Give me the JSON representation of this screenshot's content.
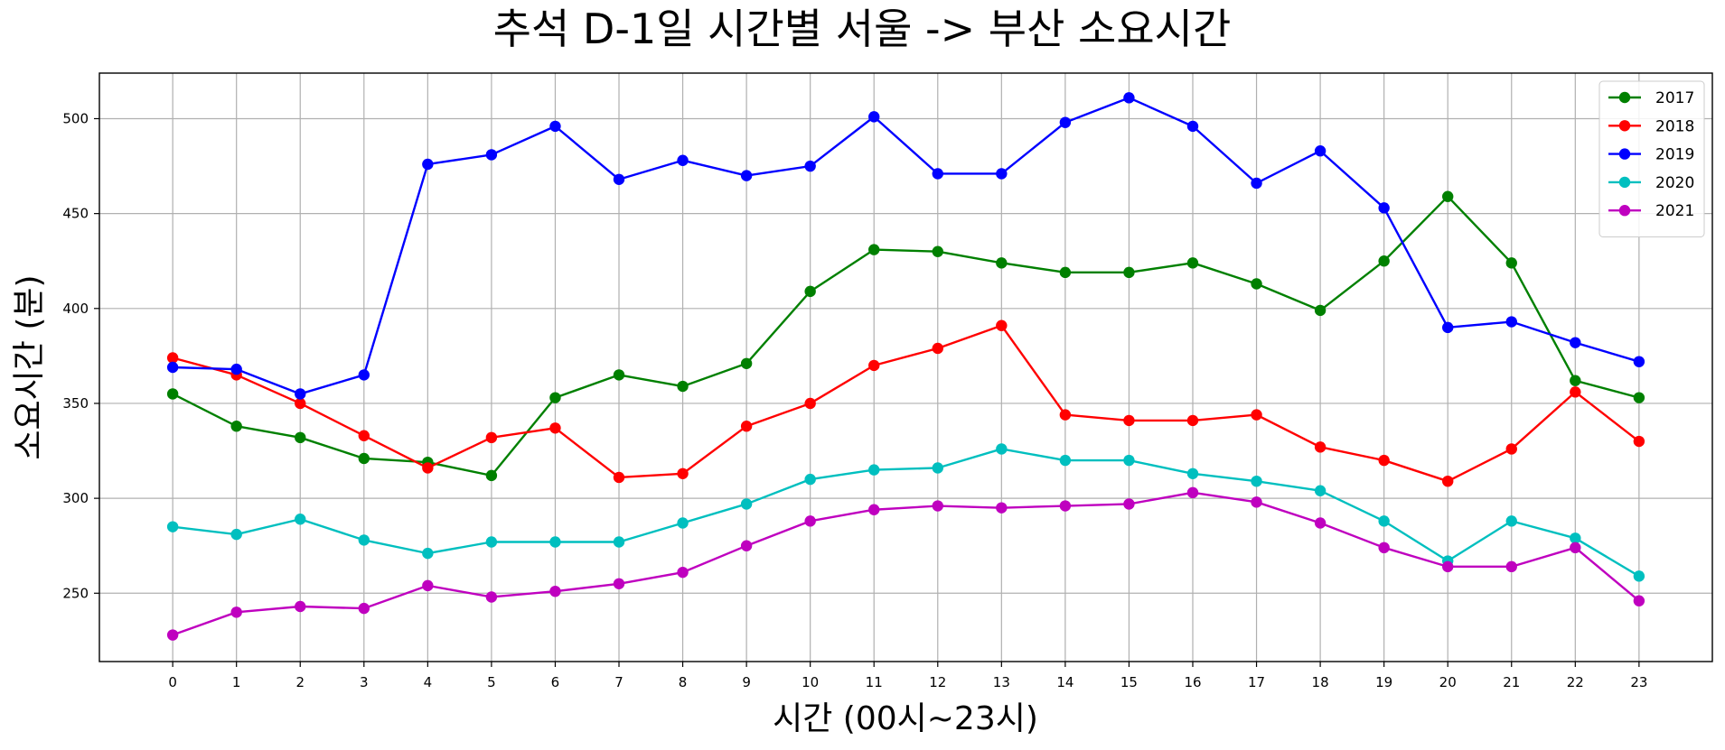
{
  "chart_data": {
    "type": "line",
    "title": "추석 D-1일 시간별 서울 -> 부산 소요시간",
    "xlabel": "시간 (00시~23시)",
    "ylabel": "소요시간 (분)",
    "x": [
      0,
      1,
      2,
      3,
      4,
      5,
      6,
      7,
      8,
      9,
      10,
      11,
      12,
      13,
      14,
      15,
      16,
      17,
      18,
      19,
      20,
      21,
      22,
      23
    ],
    "xlim": [
      -1.15,
      24.15
    ],
    "ylim": [
      214,
      524
    ],
    "yticks": [
      250,
      300,
      350,
      400,
      450,
      500
    ],
    "grid": true,
    "legend_position": "top-right",
    "series": [
      {
        "name": "2017",
        "color": "#008000",
        "values": [
          355,
          338,
          332,
          321,
          319,
          312,
          353,
          365,
          359,
          371,
          409,
          431,
          430,
          424,
          419,
          419,
          424,
          413,
          399,
          425,
          459,
          424,
          362,
          353
        ]
      },
      {
        "name": "2018",
        "color": "#ff0000",
        "values": [
          374,
          365,
          350,
          333,
          316,
          332,
          337,
          311,
          313,
          338,
          350,
          370,
          379,
          391,
          344,
          341,
          341,
          344,
          327,
          320,
          309,
          326,
          356,
          330
        ]
      },
      {
        "name": "2019",
        "color": "#0000ff",
        "values": [
          369,
          368,
          355,
          365,
          476,
          481,
          496,
          468,
          478,
          470,
          475,
          501,
          471,
          471,
          498,
          511,
          496,
          466,
          483,
          453,
          390,
          393,
          382,
          372
        ]
      },
      {
        "name": "2020",
        "color": "#00bfbf",
        "values": [
          285,
          281,
          289,
          278,
          271,
          277,
          277,
          277,
          287,
          297,
          310,
          315,
          316,
          326,
          320,
          320,
          313,
          309,
          304,
          288,
          267,
          288,
          279,
          259
        ]
      },
      {
        "name": "2021",
        "color": "#bf00bf",
        "values": [
          228,
          240,
          243,
          242,
          254,
          248,
          251,
          255,
          261,
          275,
          288,
          294,
          296,
          295,
          296,
          297,
          303,
          298,
          287,
          274,
          264,
          264,
          274,
          246
        ]
      }
    ]
  }
}
